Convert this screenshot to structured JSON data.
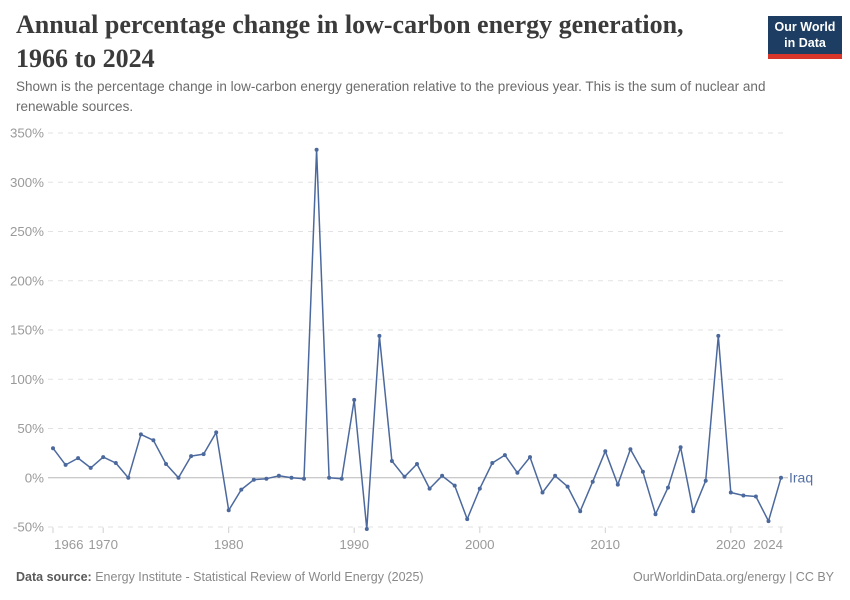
{
  "header": {
    "title": "Annual percentage change in low-carbon energy generation, 1966 to 2024",
    "subtitle": "Shown is the percentage change in low-carbon energy generation relative to the previous year. This is the sum of nuclear and renewable sources.",
    "logo": {
      "line1": "Our World",
      "line2": "in Data"
    }
  },
  "chart_data": {
    "type": "line",
    "title": "Annual percentage change in low-carbon energy generation, 1966 to 2024",
    "entity": "Iraq",
    "xlabel": "",
    "ylabel": "",
    "unit": "%",
    "grid": "horizontal-dashed",
    "legend_position": "end-of-line-label",
    "ylim": [
      -50,
      350
    ],
    "yticks": [
      350,
      300,
      250,
      200,
      150,
      100,
      50,
      0,
      -50
    ],
    "ytick_suffix": "%",
    "xticks": [
      1966,
      1970,
      1980,
      1990,
      2000,
      2010,
      2020,
      2024
    ],
    "x": [
      1966,
      1967,
      1968,
      1969,
      1970,
      1971,
      1972,
      1973,
      1974,
      1975,
      1976,
      1977,
      1978,
      1979,
      1980,
      1981,
      1982,
      1983,
      1984,
      1985,
      1986,
      1987,
      1988,
      1989,
      1990,
      1991,
      1992,
      1993,
      1994,
      1995,
      1996,
      1997,
      1998,
      1999,
      2000,
      2001,
      2002,
      2003,
      2004,
      2005,
      2006,
      2007,
      2008,
      2009,
      2010,
      2011,
      2012,
      2013,
      2014,
      2015,
      2016,
      2017,
      2018,
      2019,
      2020,
      2021,
      2022,
      2023,
      2024
    ],
    "values": [
      30,
      13,
      20,
      10,
      21,
      15,
      0,
      44,
      38,
      14,
      0,
      22,
      24,
      46,
      -33,
      -12,
      -2,
      -1,
      2,
      0,
      -1,
      333,
      0,
      -1,
      79,
      -52,
      144,
      17,
      1,
      14,
      -11,
      2,
      -8,
      -42,
      -11,
      15,
      23,
      5,
      21,
      -15,
      2,
      -9,
      -34,
      -4,
      27,
      -7,
      29,
      6,
      -37,
      -10,
      31,
      -34,
      -3,
      144,
      -15,
      -18,
      -19,
      -44,
      0
    ],
    "line_color": "#4c699e"
  },
  "footer": {
    "source_label": "Data source:",
    "source_text": " Energy Institute - Statistical Review of World Energy (2025)",
    "link_text": "OurWorldinData.org/energy | CC BY"
  },
  "colors": {
    "line": "#4c699e",
    "logo_bg": "#1d3d63",
    "logo_accent": "#d8352b",
    "axis_text": "#9a9a9a",
    "gridline": "#e2e2e2",
    "zero_line": "#b8b8b8",
    "title_text": "#3b3b3b",
    "subtitle_text": "#6b6b6b"
  }
}
